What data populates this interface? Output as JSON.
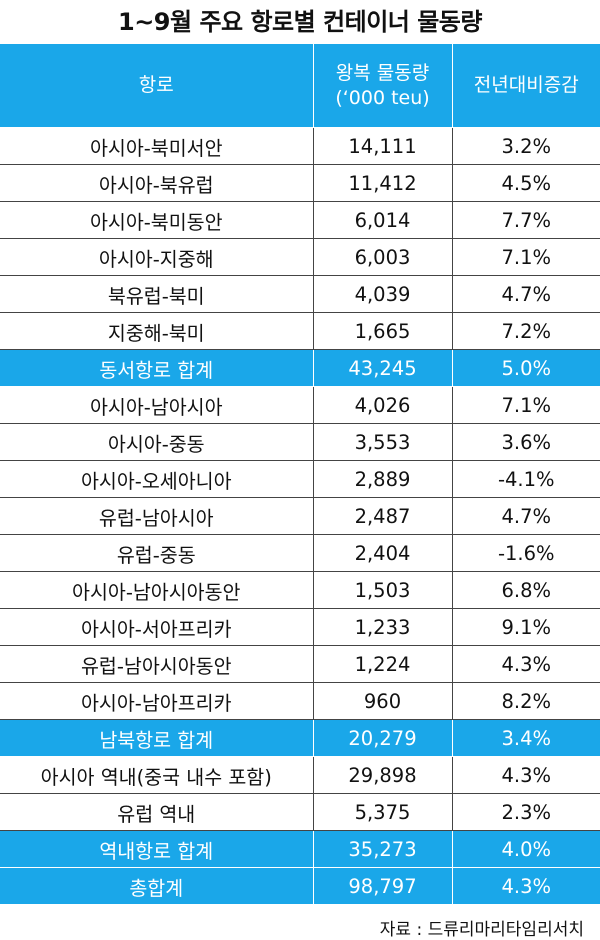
{
  "title": "1~9월 주요 항로별 컨테이너 물동량",
  "header": {
    "route": "항로",
    "volume_line1": "왕복 물동량",
    "volume_line2": "(‘000 teu)",
    "change": "전년대비증감"
  },
  "rows": [
    {
      "route": "아시아-북미서안",
      "volume": "14,111",
      "change": "3.2%",
      "total": false
    },
    {
      "route": "아시아-북유럽",
      "volume": "11,412",
      "change": "4.5%",
      "total": false
    },
    {
      "route": "아시아-북미동안",
      "volume": "6,014",
      "change": "7.7%",
      "total": false
    },
    {
      "route": "아시아-지중해",
      "volume": "6,003",
      "change": "7.1%",
      "total": false
    },
    {
      "route": "북유럽-북미",
      "volume": "4,039",
      "change": "4.7%",
      "total": false
    },
    {
      "route": "지중해-북미",
      "volume": "1,665",
      "change": "7.2%",
      "total": false
    },
    {
      "route": "동서항로 합계",
      "volume": "43,245",
      "change": "5.0%",
      "total": true
    },
    {
      "route": "아시아-남아시아",
      "volume": "4,026",
      "change": "7.1%",
      "total": false
    },
    {
      "route": "아시아-중동",
      "volume": "3,553",
      "change": "3.6%",
      "total": false
    },
    {
      "route": "아시아-오세아니아",
      "volume": "2,889",
      "change": "-4.1%",
      "total": false
    },
    {
      "route": "유럽-남아시아",
      "volume": "2,487",
      "change": "4.7%",
      "total": false
    },
    {
      "route": "유럽-중동",
      "volume": "2,404",
      "change": "-1.6%",
      "total": false
    },
    {
      "route": "아시아-남아시아동안",
      "volume": "1,503",
      "change": "6.8%",
      "total": false
    },
    {
      "route": "아시아-서아프리카",
      "volume": "1,233",
      "change": "9.1%",
      "total": false
    },
    {
      "route": "유럽-남아시아동안",
      "volume": "1,224",
      "change": "4.3%",
      "total": false
    },
    {
      "route": "아시아-남아프리카",
      "volume": "960",
      "change": "8.2%",
      "total": false
    },
    {
      "route": "남북항로 합계",
      "volume": "20,279",
      "change": "3.4%",
      "total": true
    },
    {
      "route": "아시아 역내(중국 내수 포함)",
      "volume": "29,898",
      "change": "4.3%",
      "total": false
    },
    {
      "route": "유럽 역내",
      "volume": "5,375",
      "change": "2.3%",
      "total": false
    },
    {
      "route": "역내항로 합계",
      "volume": "35,273",
      "change": "4.0%",
      "total": true
    },
    {
      "route": "총합계",
      "volume": "98,797",
      "change": "4.3%",
      "total": true
    }
  ],
  "source": "자료 : 드류리마리타임리서치",
  "colors": {
    "header_bg": "#1aa7e9",
    "total_bg": "#1aa7e9",
    "header_text": "#ffffff"
  }
}
